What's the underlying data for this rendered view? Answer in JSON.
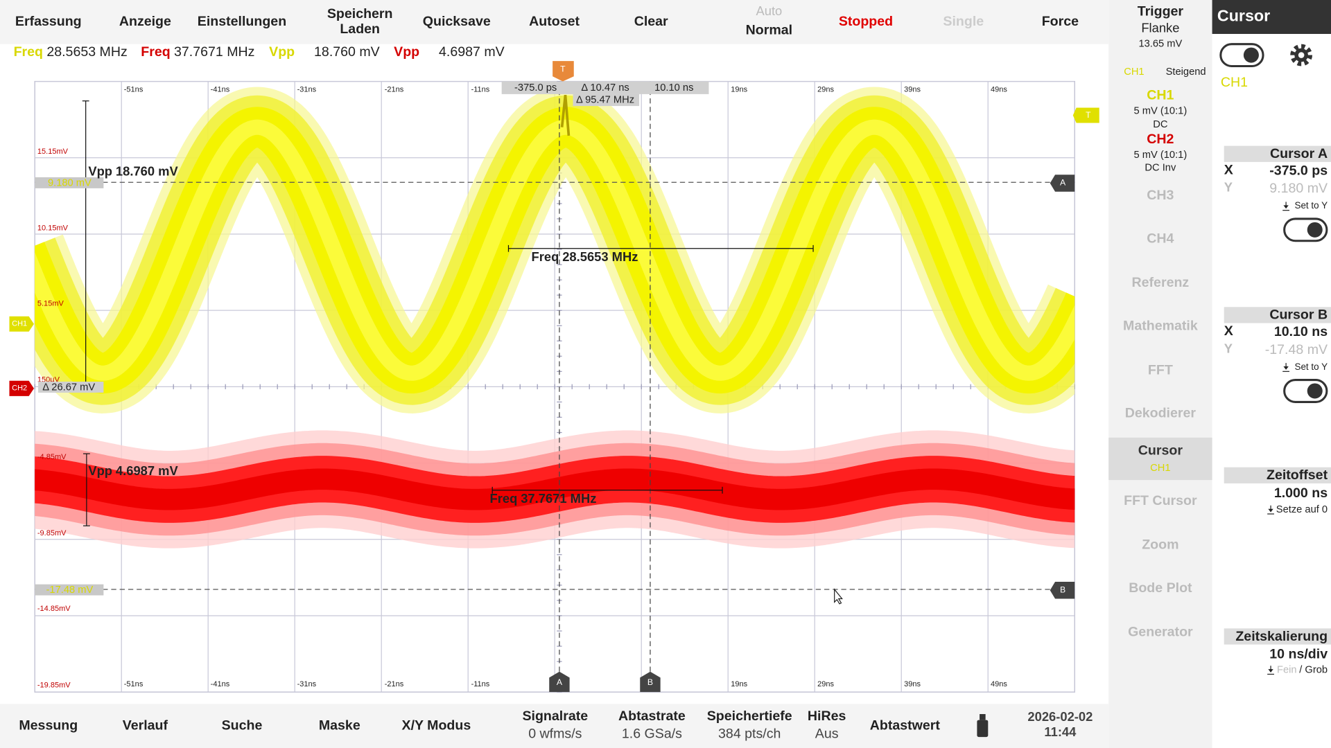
{
  "menu": [
    "Erfassung",
    "Anzeige",
    "Einstellungen",
    [
      "Speichern",
      "Laden"
    ],
    "Quicksave",
    "Autoset",
    "Clear",
    [
      "Auto",
      "Normal"
    ],
    "Stopped",
    "Single",
    "Force"
  ],
  "measurements": [
    {
      "label": "Freq",
      "value": "28.5653 MHz"
    },
    {
      "label": "Freq",
      "value": "37.7671 MHz"
    },
    {
      "label": "Vpp",
      "value": "18.760 mV"
    },
    {
      "label": "Vpp",
      "value": "4.6987 mV"
    }
  ],
  "plot": {
    "time_labels": [
      "-51ns",
      "-41ns",
      "-31ns",
      "-21ns",
      "-11ns",
      "19ns",
      "29ns",
      "39ns",
      "49ns"
    ],
    "ch1_levels": [
      "15.15mV",
      "10.15mV",
      "5.15mV",
      "150µV"
    ],
    "ch2_levels": [
      "-4.85mV",
      "-9.85mV",
      "-14.85mV",
      "-19.85mV"
    ],
    "cursor_readout": {
      "a_x": "-375.0 ps",
      "delta_x": "Δ 10.47 ns",
      "b_x": "10.10 ns",
      "delta_f": "Δ 95.47 MHz"
    },
    "delta_y": "Δ 26.67 mV",
    "cursor_a_y": "9.180 mV",
    "cursor_b_y": "-17.48 mV",
    "markers": {
      "trigger": "T",
      "a": "A",
      "b": "B",
      "ch1": "CH1",
      "ch2": "CH2"
    }
  },
  "side_menu": {
    "trigger": {
      "title": "Trigger",
      "mode": "Flanke",
      "level": "13.65 mV",
      "source": "CH1",
      "slope": "Steigend"
    },
    "ch1": {
      "name": "CH1",
      "scale": "5 mV (10:1)",
      "coupling": "DC"
    },
    "ch2": {
      "name": "CH2",
      "scale": "5 mV (10:1)",
      "coupling": "DC Inv"
    },
    "items": [
      "CH3",
      "CH4",
      "Referenz",
      "Mathematik",
      "FFT",
      "Dekodierer"
    ],
    "active": {
      "name": "Cursor",
      "source": "CH1"
    },
    "items_after": [
      "FFT Cursor",
      "Zoom",
      "Bode Plot",
      "Generator"
    ]
  },
  "cursor_panel": {
    "title": "Cursor",
    "source": "CH1",
    "cursor_a": {
      "title": "Cursor A",
      "x_label": "X",
      "x": "-375.0 ps",
      "y_label": "Y",
      "y": "9.180 mV",
      "set": "Set to Y"
    },
    "cursor_b": {
      "title": "Cursor B",
      "x_label": "X",
      "x": "10.10 ns",
      "y_label": "Y",
      "y": "-17.48 mV",
      "set": "Set to Y"
    },
    "time_offset": {
      "title": "Zeitoffset",
      "value": "1.000 ns",
      "action": "Setze auf 0"
    },
    "time_scale": {
      "title": "Zeitskalierung",
      "value": "10 ns/div",
      "fine": "Fein",
      "coarse": "/ Grob"
    }
  },
  "bottom_bar": {
    "buttons": [
      "Messung",
      "Verlauf",
      "Suche",
      "Maske",
      "X/Y Modus"
    ],
    "status": [
      {
        "label": "Signalrate",
        "value": "0 wfms/s"
      },
      {
        "label": "Abtastrate",
        "value": "1.6 GSa/s"
      },
      {
        "label": "Speichertiefe",
        "value": "384 pts/ch"
      },
      {
        "label": "HiRes",
        "value": "Aus"
      }
    ],
    "sample": "Abtastwert",
    "date": "2026-02-02",
    "time": "11:44"
  }
}
